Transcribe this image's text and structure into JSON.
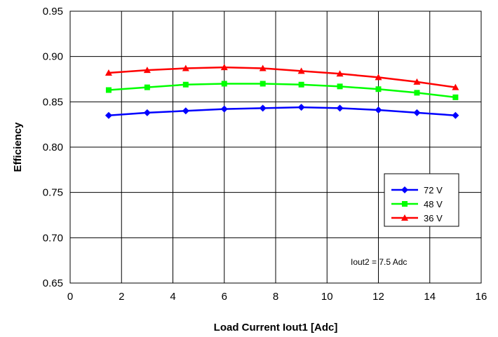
{
  "chart_data": {
    "type": "line",
    "xlabel": "Load Current Iout1 [Adc]",
    "ylabel": "Efficiency",
    "xlim": [
      0,
      16
    ],
    "ylim": [
      0.65,
      0.95
    ],
    "xticks": [
      "0",
      "2",
      "4",
      "6",
      "8",
      "10",
      "12",
      "14",
      "16"
    ],
    "yticks": [
      "0.65",
      "0.70",
      "0.75",
      "0.80",
      "0.85",
      "0.90",
      "0.95"
    ],
    "grid": true,
    "legend_position": "bottom-right",
    "annotation": "Iout2 = 7.5 Adc",
    "x": [
      1.5,
      3,
      4.5,
      6,
      7.5,
      9,
      10.5,
      12,
      13.5,
      15
    ],
    "series": [
      {
        "name": "72 V",
        "color": "#0000ff",
        "marker": "diamond",
        "values": [
          0.835,
          0.838,
          0.84,
          0.842,
          0.843,
          0.844,
          0.843,
          0.841,
          0.838,
          0.835
        ]
      },
      {
        "name": "48 V",
        "color": "#00ff00",
        "marker": "square",
        "values": [
          0.863,
          0.866,
          0.869,
          0.87,
          0.87,
          0.869,
          0.867,
          0.864,
          0.86,
          0.855
        ]
      },
      {
        "name": "36 V",
        "color": "#ff0000",
        "marker": "triangle",
        "values": [
          0.882,
          0.885,
          0.887,
          0.888,
          0.887,
          0.884,
          0.881,
          0.877,
          0.872,
          0.866
        ]
      }
    ]
  }
}
